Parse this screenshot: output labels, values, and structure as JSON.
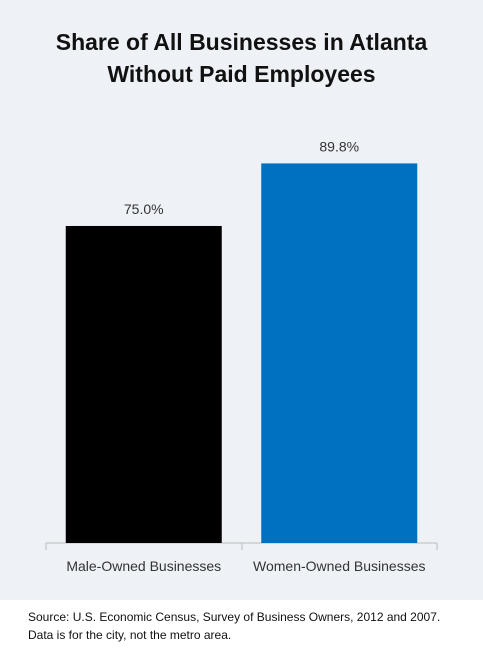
{
  "chart_data": {
    "type": "bar",
    "title": "Share of All Businesses in Atlanta Without Paid Employees",
    "categories": [
      "Male-Owned Businesses",
      "Women-Owned Businesses"
    ],
    "values": [
      75.0,
      89.8
    ],
    "value_labels": [
      "75.0%",
      "89.8%"
    ],
    "colors": [
      "#000000",
      "#0070c0"
    ],
    "source": "Source: U.S. Economic Census, Survey of Business Owners, 2012 and 2007. Data is for the city, not the metro area."
  }
}
